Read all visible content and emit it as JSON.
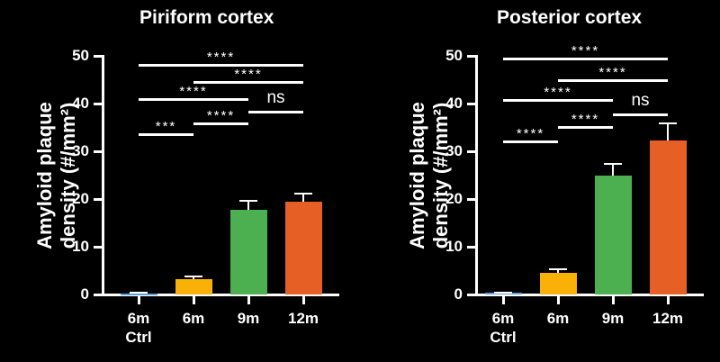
{
  "chart_data": [
    {
      "type": "bar",
      "title": "Piriform cortex",
      "xlabel": "",
      "ylabel": "Amyloid plaque density (#/mm²)",
      "ylim": [
        0,
        50
      ],
      "yticks": [
        0,
        10,
        20,
        30,
        40,
        50
      ],
      "categories": [
        "6m Ctrl",
        "6m",
        "9m",
        "12m"
      ],
      "values": [
        0.2,
        3.2,
        17.7,
        19.4
      ],
      "error_upper": [
        0.3,
        3.8,
        19.6,
        21.1
      ],
      "colors": [
        "#5ba3e0",
        "#f9b107",
        "#4caf50",
        "#e65f25"
      ],
      "significance": [
        {
          "from": 0,
          "to": 3,
          "label": "****"
        },
        {
          "from": 1,
          "to": 3,
          "label": "****"
        },
        {
          "from": 0,
          "to": 2,
          "label": "****"
        },
        {
          "from": 2,
          "to": 3,
          "label": "ns"
        },
        {
          "from": 1,
          "to": 2,
          "label": "****"
        },
        {
          "from": 0,
          "to": 1,
          "label": "***"
        }
      ]
    },
    {
      "type": "bar",
      "title": "Posterior cortex",
      "xlabel": "",
      "ylabel": "Amyloid plaque density (#/mm²)",
      "ylim": [
        0,
        50
      ],
      "yticks": [
        0,
        10,
        20,
        30,
        40,
        50
      ],
      "categories": [
        "6m Ctrl",
        "6m",
        "9m",
        "12m"
      ],
      "values": [
        0.3,
        4.6,
        24.9,
        32.3
      ],
      "error_upper": [
        0.4,
        5.3,
        27.4,
        35.9
      ],
      "colors": [
        "#5ba3e0",
        "#f9b107",
        "#4caf50",
        "#e65f25"
      ],
      "significance": [
        {
          "from": 0,
          "to": 3,
          "label": "****"
        },
        {
          "from": 1,
          "to": 3,
          "label": "****"
        },
        {
          "from": 0,
          "to": 2,
          "label": "****"
        },
        {
          "from": 2,
          "to": 3,
          "label": "ns"
        },
        {
          "from": 1,
          "to": 2,
          "label": "****"
        },
        {
          "from": 0,
          "to": 1,
          "label": "****"
        }
      ]
    }
  ],
  "ui": {
    "ylabel_line1": "Amyloid plaque",
    "ylabel_line2": "density (#/mm²)",
    "xtick_line1": [
      "6m",
      "6m",
      "9m",
      "12m"
    ],
    "xtick_line2": [
      "Ctrl",
      "",
      "",
      ""
    ]
  }
}
